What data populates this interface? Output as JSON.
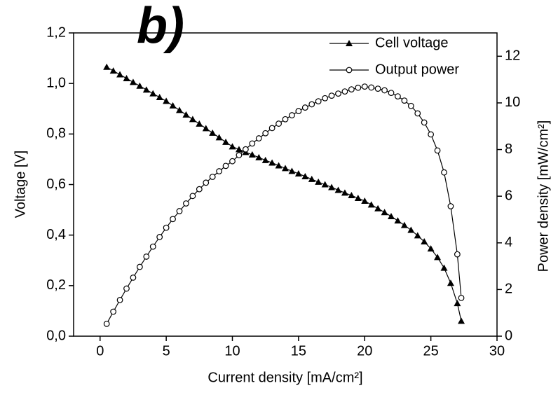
{
  "chart_data": {
    "type": "line",
    "title": "b)",
    "x_label": "Current density [mA/cm²]",
    "y_label": "Voltage [V]",
    "y2_label": "Power density [mW/cm²]",
    "x": [
      0.5,
      1,
      1.5,
      2,
      2.5,
      3,
      3.5,
      4,
      4.5,
      5,
      5.5,
      6,
      6.5,
      7,
      7.5,
      8,
      8.5,
      9,
      9.5,
      10,
      10.5,
      11,
      11.5,
      12,
      12.5,
      13,
      13.5,
      14,
      14.5,
      15,
      15.5,
      16,
      16.5,
      17,
      17.5,
      18,
      18.5,
      19,
      19.5,
      20,
      20.5,
      21,
      21.5,
      22,
      22.5,
      23,
      23.5,
      24,
      24.5,
      25,
      25.5,
      26,
      26.5,
      27,
      27.3
    ],
    "series": [
      {
        "name": "Cell voltage",
        "color": "#000000",
        "marker": "triangle",
        "axis": "y",
        "values": [
          1.065,
          1.05,
          1.035,
          1.02,
          1.005,
          0.99,
          0.975,
          0.96,
          0.945,
          0.93,
          0.912,
          0.894,
          0.876,
          0.858,
          0.84,
          0.822,
          0.804,
          0.786,
          0.768,
          0.75,
          0.739,
          0.728,
          0.718,
          0.707,
          0.696,
          0.686,
          0.675,
          0.664,
          0.653,
          0.643,
          0.632,
          0.621,
          0.61,
          0.6,
          0.589,
          0.578,
          0.567,
          0.557,
          0.546,
          0.535,
          0.52,
          0.505,
          0.49,
          0.474,
          0.457,
          0.439,
          0.42,
          0.398,
          0.374,
          0.346,
          0.312,
          0.27,
          0.21,
          0.13,
          0.06
        ]
      },
      {
        "name": "Output power",
        "color": "#000000",
        "marker": "circle",
        "axis": "y2",
        "values": [
          0.53,
          1.05,
          1.55,
          2.04,
          2.51,
          2.97,
          3.41,
          3.84,
          4.25,
          4.65,
          5.02,
          5.36,
          5.69,
          6.01,
          6.3,
          6.58,
          6.83,
          7.07,
          7.3,
          7.5,
          7.76,
          8.01,
          8.26,
          8.48,
          8.7,
          8.92,
          9.11,
          9.3,
          9.47,
          9.65,
          9.8,
          9.94,
          10.07,
          10.2,
          10.31,
          10.4,
          10.49,
          10.58,
          10.65,
          10.7,
          10.66,
          10.61,
          10.54,
          10.43,
          10.28,
          10.1,
          9.87,
          9.55,
          9.16,
          8.65,
          7.96,
          7.02,
          5.57,
          3.51,
          1.64
        ]
      }
    ],
    "xlim": [
      -2,
      30
    ],
    "xticks": [
      0,
      5,
      10,
      15,
      20,
      25,
      30
    ],
    "ylim": [
      0,
      1.2
    ],
    "yticks": [
      {
        "value": 0,
        "label": "0,0"
      },
      {
        "value": 0.2,
        "label": "0,2"
      },
      {
        "value": 0.4,
        "label": "0,4"
      },
      {
        "value": 0.6,
        "label": "0,6"
      },
      {
        "value": 0.8,
        "label": "0,8"
      },
      {
        "value": 1.0,
        "label": "1,0"
      },
      {
        "value": 1.2,
        "label": "1,2"
      }
    ],
    "y2lim": [
      0,
      13
    ],
    "y2ticks": [
      0,
      2,
      4,
      6,
      8,
      10,
      12
    ],
    "legend": "top-right"
  }
}
